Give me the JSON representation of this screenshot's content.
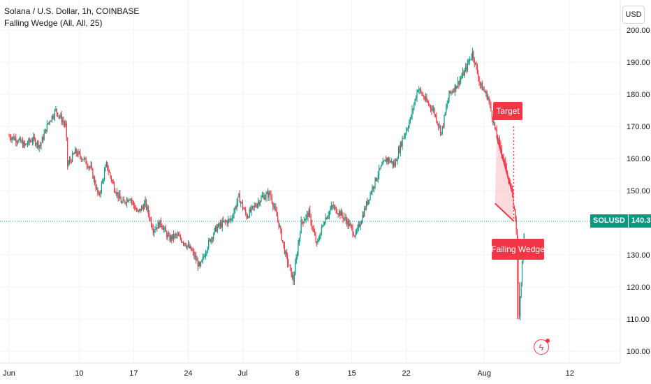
{
  "header": {
    "title": "Solana / U.S. Dollar, 1h, COINBASE",
    "indicator": "Falling Wedge (All, All, 25)"
  },
  "currency_button": "USD",
  "price_badge": {
    "symbol": "SOLUSD",
    "value": "140.31"
  },
  "colors": {
    "up": "#089981",
    "down": "#f23645",
    "pattern": "#f23645",
    "grid": "#f0f3fa"
  },
  "chart_data": {
    "type": "candlestick",
    "symbol": "SOLUSD",
    "interval": "1h",
    "exchange": "COINBASE",
    "ylim": [
      98,
      202
    ],
    "y_ticks": [
      100,
      110,
      120,
      130,
      140,
      150,
      160,
      170,
      180,
      190,
      200
    ],
    "y_tick_labels": [
      "100.00",
      "110.00",
      "120.00",
      "130.00",
      "140.00",
      "150.00",
      "160.00",
      "170.00",
      "180.00",
      "190.00",
      "200.00"
    ],
    "x_ticks": [
      {
        "label": "Jun",
        "day": 0
      },
      {
        "label": "10",
        "day": 9
      },
      {
        "label": "17",
        "day": 16
      },
      {
        "label": "24",
        "day": 23
      },
      {
        "label": "Jul",
        "day": 30
      },
      {
        "label": "8",
        "day": 37
      },
      {
        "label": "15",
        "day": 44
      },
      {
        "label": "22",
        "day": 51
      },
      {
        "label": "Aug",
        "day": 61
      },
      {
        "label": "12",
        "day": 72
      }
    ],
    "x_day_range": [
      -1,
      80
    ],
    "last_day": 66.2,
    "last_price": 140.31,
    "price_path": [
      [
        0,
        167
      ],
      [
        1,
        166
      ],
      [
        2,
        164
      ],
      [
        3,
        166
      ],
      [
        4,
        164
      ],
      [
        5,
        171
      ],
      [
        6,
        175
      ],
      [
        6.8,
        172
      ],
      [
        7.3,
        170
      ],
      [
        7.5,
        158
      ],
      [
        8.5,
        162
      ],
      [
        9.5,
        160
      ],
      [
        10.5,
        157
      ],
      [
        11.5,
        148
      ],
      [
        12.5,
        158
      ],
      [
        13.5,
        151
      ],
      [
        14.5,
        146
      ],
      [
        15.5,
        148
      ],
      [
        16.5,
        143
      ],
      [
        17.5,
        146
      ],
      [
        18.5,
        138
      ],
      [
        19.5,
        140
      ],
      [
        20.5,
        135
      ],
      [
        21.5,
        136
      ],
      [
        22.5,
        134
      ],
      [
        23.5,
        131
      ],
      [
        24.5,
        126
      ],
      [
        25.5,
        133
      ],
      [
        26.5,
        138
      ],
      [
        27.5,
        140
      ],
      [
        28.5,
        141
      ],
      [
        29.5,
        148
      ],
      [
        30.5,
        142
      ],
      [
        31.5,
        145
      ],
      [
        32.5,
        148
      ],
      [
        33.5,
        149
      ],
      [
        34.5,
        141
      ],
      [
        35.5,
        130
      ],
      [
        36.5,
        122
      ],
      [
        37.5,
        140
      ],
      [
        38.5,
        143
      ],
      [
        39.5,
        133
      ],
      [
        40.5,
        141
      ],
      [
        41.5,
        145
      ],
      [
        42.5,
        143
      ],
      [
        43.5,
        140
      ],
      [
        44.5,
        136
      ],
      [
        45.5,
        143
      ],
      [
        46.5,
        150
      ],
      [
        47.5,
        156
      ],
      [
        48.5,
        160
      ],
      [
        49.5,
        158
      ],
      [
        50.5,
        166
      ],
      [
        51.5,
        172
      ],
      [
        52.5,
        182
      ],
      [
        53.5,
        178
      ],
      [
        54.5,
        175
      ],
      [
        55.5,
        168
      ],
      [
        56.5,
        180
      ],
      [
        57.5,
        183
      ],
      [
        58.5,
        187
      ],
      [
        59.5,
        193
      ],
      [
        60.5,
        183
      ],
      [
        61.5,
        179
      ],
      [
        62.5,
        168
      ],
      [
        63.5,
        160
      ],
      [
        64.5,
        150
      ],
      [
        65.1,
        140
      ],
      [
        65.5,
        112
      ],
      [
        66.2,
        140.31
      ]
    ],
    "annotations": [
      {
        "type": "label",
        "text": "Target",
        "color": "#f23645"
      },
      {
        "type": "label",
        "text": "Falling Wedge",
        "color": "#f23645"
      }
    ],
    "falling_wedge": {
      "upper_line": [
        [
          62.6,
          167
        ],
        [
          64.6,
          149.5
        ]
      ],
      "lower_line": [
        [
          62.4,
          146
        ],
        [
          64.8,
          140.5
        ]
      ],
      "target_price": 170,
      "target_day": 64.8
    }
  }
}
